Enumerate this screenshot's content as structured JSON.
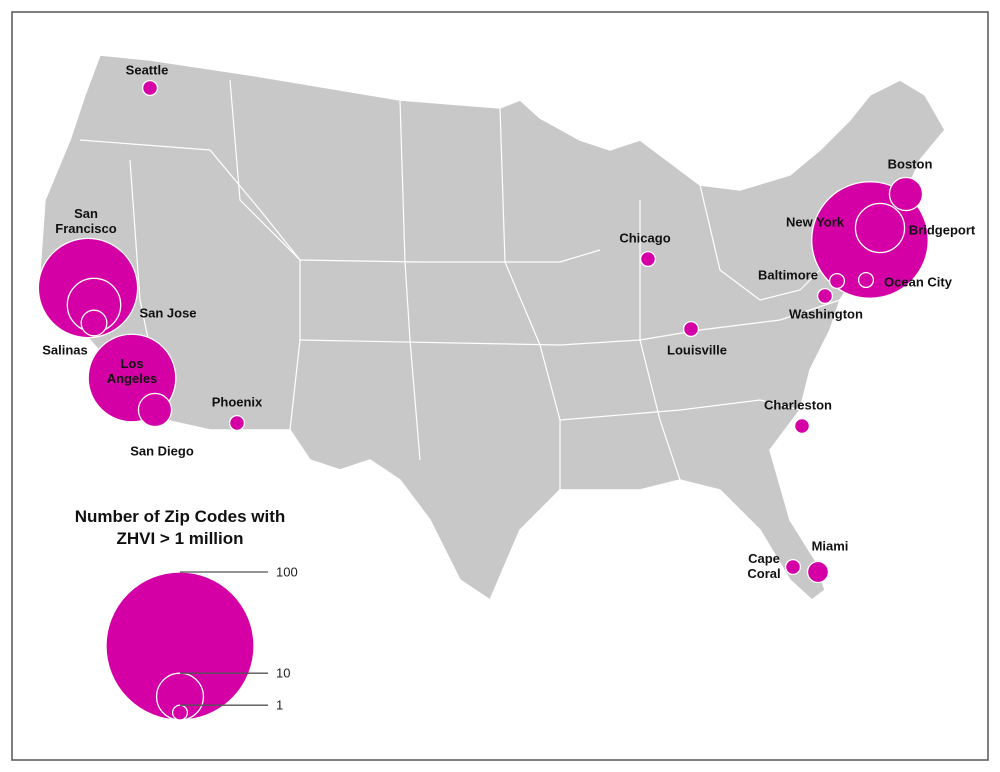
{
  "chart_data": {
    "type": "bubble-map",
    "color": "#d400a6",
    "cities": [
      {
        "name": "Seattle",
        "value": 1
      },
      {
        "name": "San Francisco",
        "value": 45
      },
      {
        "name": "San Jose",
        "value": 13
      },
      {
        "name": "Salinas",
        "value": 3
      },
      {
        "name": "Los Angeles",
        "value": 35
      },
      {
        "name": "San Diego",
        "value": 5
      },
      {
        "name": "Phoenix",
        "value": 1
      },
      {
        "name": "Chicago",
        "value": 1
      },
      {
        "name": "Louisville",
        "value": 1
      },
      {
        "name": "Boston",
        "value": 5
      },
      {
        "name": "New York",
        "value": 62
      },
      {
        "name": "Bridgeport",
        "value": 11
      },
      {
        "name": "Baltimore",
        "value": 1
      },
      {
        "name": "Washington",
        "value": 1
      },
      {
        "name": "Ocean City",
        "value": 1
      },
      {
        "name": "Charleston",
        "value": 1
      },
      {
        "name": "Cape Coral",
        "value": 1
      },
      {
        "name": "Miami",
        "value": 2
      }
    ],
    "legend": {
      "title": [
        "Number of Zip Codes with",
        "ZHVI > 1 million"
      ],
      "values": [
        100,
        10,
        1
      ]
    }
  }
}
